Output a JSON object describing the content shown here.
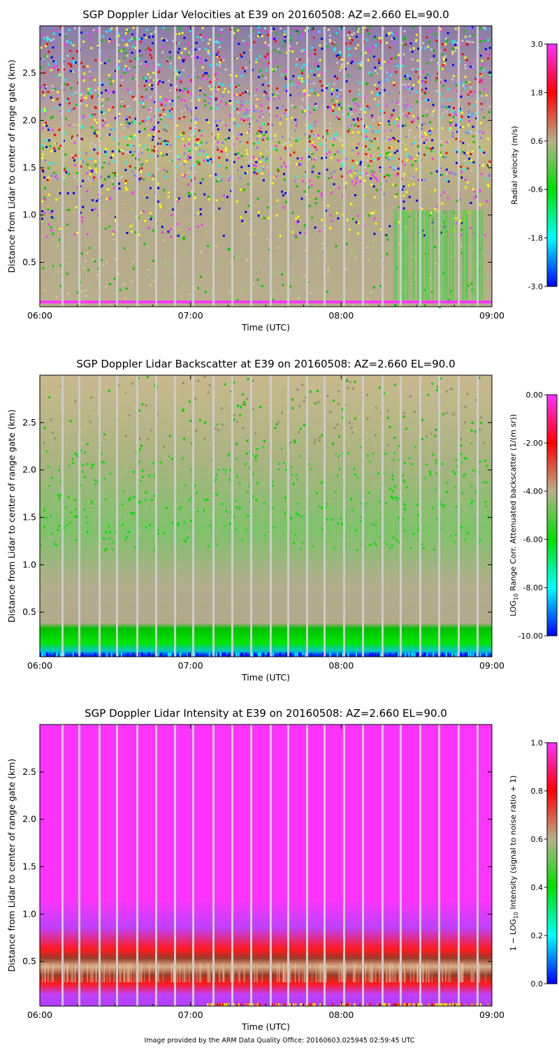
{
  "credit": "Image provided by the ARM Data Quality Office: 20160603.025945 02:59:45 UTC",
  "chart_data": [
    {
      "type": "heatmap",
      "title": "SGP Doppler Lidar Velocities at E39 on 20160508: AZ=2.660 EL=90.0",
      "xlabel": "Time (UTC)",
      "ylabel": "Distance from Lidar to center of range gate (km)",
      "x_ticks": [
        "06:00",
        "07:00",
        "08:00",
        "09:00"
      ],
      "y_ticks": [
        0.5,
        1.0,
        1.5,
        2.0,
        2.5
      ],
      "y_tick_labels": [
        "0.5",
        "1.0",
        "1.5",
        "2.0",
        "2.5"
      ],
      "x_range": [
        "06:00",
        "09:00"
      ],
      "y_range": [
        0.03,
        3.0
      ],
      "colorbar": {
        "label": "Radial velocity (m/s)",
        "range": [
          -3.0,
          3.0
        ],
        "ticks": [
          "3.0",
          "1.8",
          "0.6",
          "-0.6",
          "-1.8",
          "-3.0"
        ]
      }
    },
    {
      "type": "heatmap",
      "title": "SGP Doppler Lidar Backscatter at E39 on 20160508: AZ=2.660 EL=90.0",
      "xlabel": "Time (UTC)",
      "ylabel": "Distance from Lidar to center of range gate (km)",
      "x_ticks": [
        "06:00",
        "07:00",
        "08:00",
        "09:00"
      ],
      "y_ticks": [
        0.5,
        1.0,
        1.5,
        2.0,
        2.5
      ],
      "y_tick_labels": [
        "0.5",
        "1.0",
        "1.5",
        "2.0",
        "2.5"
      ],
      "x_range": [
        "06:00",
        "09:00"
      ],
      "y_range": [
        0.03,
        3.0
      ],
      "colorbar": {
        "label_prefix": "LOG",
        "label_sub": "10",
        "label_rest": " Range Corr. Attenuated backscatter (1/(m sr))",
        "range": [
          -10.0,
          0.0
        ],
        "ticks": [
          "0.00",
          "-2.00",
          "-4.00",
          "-6.00",
          "-8.00",
          "-10.00"
        ]
      }
    },
    {
      "type": "heatmap",
      "title": "SGP Doppler Lidar Intensity at E39 on 20160508: AZ=2.660 EL=90.0",
      "xlabel": "Time (UTC)",
      "ylabel": "Distance from Lidar to center of range gate (km)",
      "x_ticks": [
        "06:00",
        "07:00",
        "08:00",
        "09:00"
      ],
      "y_ticks": [
        0.5,
        1.0,
        1.5,
        2.0,
        2.5
      ],
      "y_tick_labels": [
        "0.5",
        "1.0",
        "1.5",
        "2.0",
        "2.5"
      ],
      "x_range": [
        "06:00",
        "09:00"
      ],
      "y_range": [
        0.03,
        3.0
      ],
      "colorbar": {
        "label_prefix": "1 − LOG",
        "label_sub": "10",
        "label_rest": " Intensity (signal to noise ratio + 1)",
        "range": [
          0.0,
          1.0
        ],
        "ticks": [
          "1.0",
          "0.8",
          "0.6",
          "0.4",
          "0.2",
          "0.0"
        ]
      }
    }
  ]
}
